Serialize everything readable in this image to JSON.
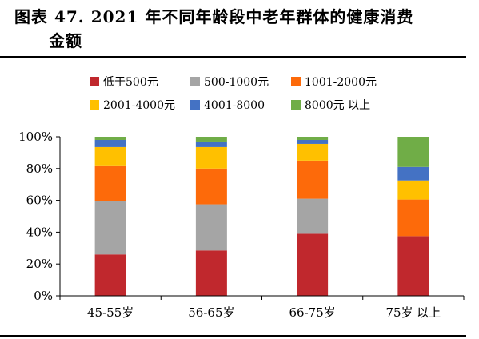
{
  "title": {
    "line1": "图表 47. 2021 年不同年龄段中老年群体的健康消费",
    "line2": "金额"
  },
  "chart_data": {
    "type": "bar",
    "stacked": true,
    "percent": true,
    "categories": [
      "45-55岁",
      "56-65岁",
      "66-75岁",
      "75岁 以上"
    ],
    "series": [
      {
        "name": "低于500元",
        "color": "#c0282d",
        "values": [
          26,
          28.5,
          39,
          37.5
        ]
      },
      {
        "name": "500-1000元",
        "color": "#a5a5a5",
        "values": [
          33.5,
          29,
          22,
          0
        ]
      },
      {
        "name": "1001-2000元",
        "color": "#fd6a0a",
        "values": [
          22.5,
          22.5,
          24,
          23
        ]
      },
      {
        "name": "2001-4000元",
        "color": "#ffc000",
        "values": [
          11.5,
          13.5,
          10.5,
          12
        ]
      },
      {
        "name": "4001-8000",
        "color": "#4472c4",
        "values": [
          4.5,
          3.5,
          2.5,
          8.5
        ]
      },
      {
        "name": "8000元 以上",
        "color": "#70ad47",
        "values": [
          2,
          3,
          2,
          19
        ]
      }
    ],
    "yticks": [
      "0%",
      "20%",
      "40%",
      "60%",
      "80%",
      "100%"
    ],
    "ylim": [
      0,
      100
    ],
    "legend": "top"
  }
}
